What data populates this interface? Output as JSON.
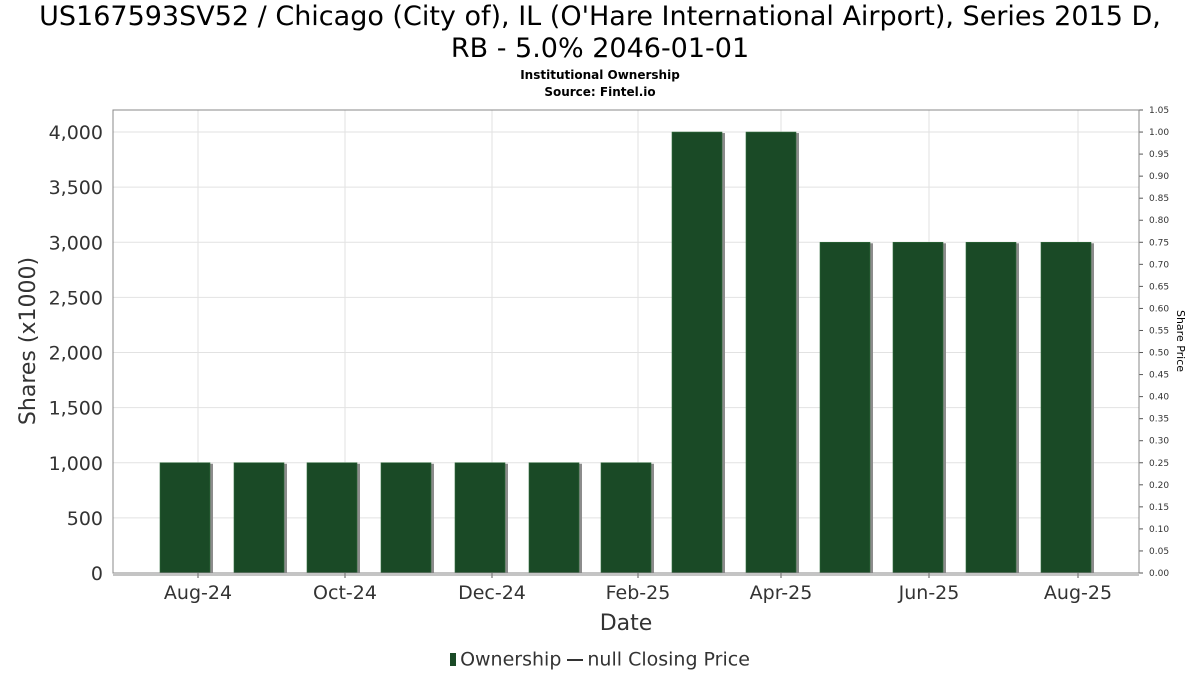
{
  "title_line1": "US167593SV52 / Chicago (City of), IL (O'Hare International Airport), Series 2015 D,",
  "title_line2": "RB - 5.0% 2046-01-01",
  "subtitle1": "Institutional Ownership",
  "subtitle2": "Source: Fintel.io",
  "legend": {
    "ownership": "Ownership",
    "price": "null Closing Price"
  },
  "colors": {
    "bar": "#1a4a26",
    "bar_shadow": "#8c8c8c",
    "grid": "#e2e2e2",
    "axis": "#555555"
  },
  "chart_data": {
    "type": "bar",
    "xlabel": "Date",
    "ylabel": "Shares (x1000)",
    "y2label": "Share Price",
    "ylim": [
      0,
      4200
    ],
    "y2lim": [
      0,
      1.05
    ],
    "yticks": [
      0,
      500,
      1000,
      1500,
      2000,
      2500,
      3000,
      3500,
      4000
    ],
    "ytick_labels": [
      "0",
      "500",
      "1,000",
      "1,500",
      "2,000",
      "2,500",
      "3,000",
      "3,500",
      "4,000"
    ],
    "y2ticks": [
      "0.00",
      "0.05",
      "0.10",
      "0.15",
      "0.20",
      "0.25",
      "0.30",
      "0.35",
      "0.40",
      "0.45",
      "0.50",
      "0.55",
      "0.60",
      "0.65",
      "0.70",
      "0.75",
      "0.80",
      "0.85",
      "0.90",
      "0.95",
      "1.00",
      "1.05"
    ],
    "xtick_labels": [
      "Aug-24",
      "Oct-24",
      "Dec-24",
      "Feb-25",
      "Apr-25",
      "Jun-25",
      "Aug-25"
    ],
    "grid": true,
    "legend_position": "bottom-center",
    "series": [
      {
        "name": "Ownership",
        "values": [
          1000,
          1000,
          1000,
          1000,
          1000,
          1000,
          1000,
          4000,
          4000,
          3000,
          3000,
          3000,
          3000
        ]
      }
    ]
  }
}
